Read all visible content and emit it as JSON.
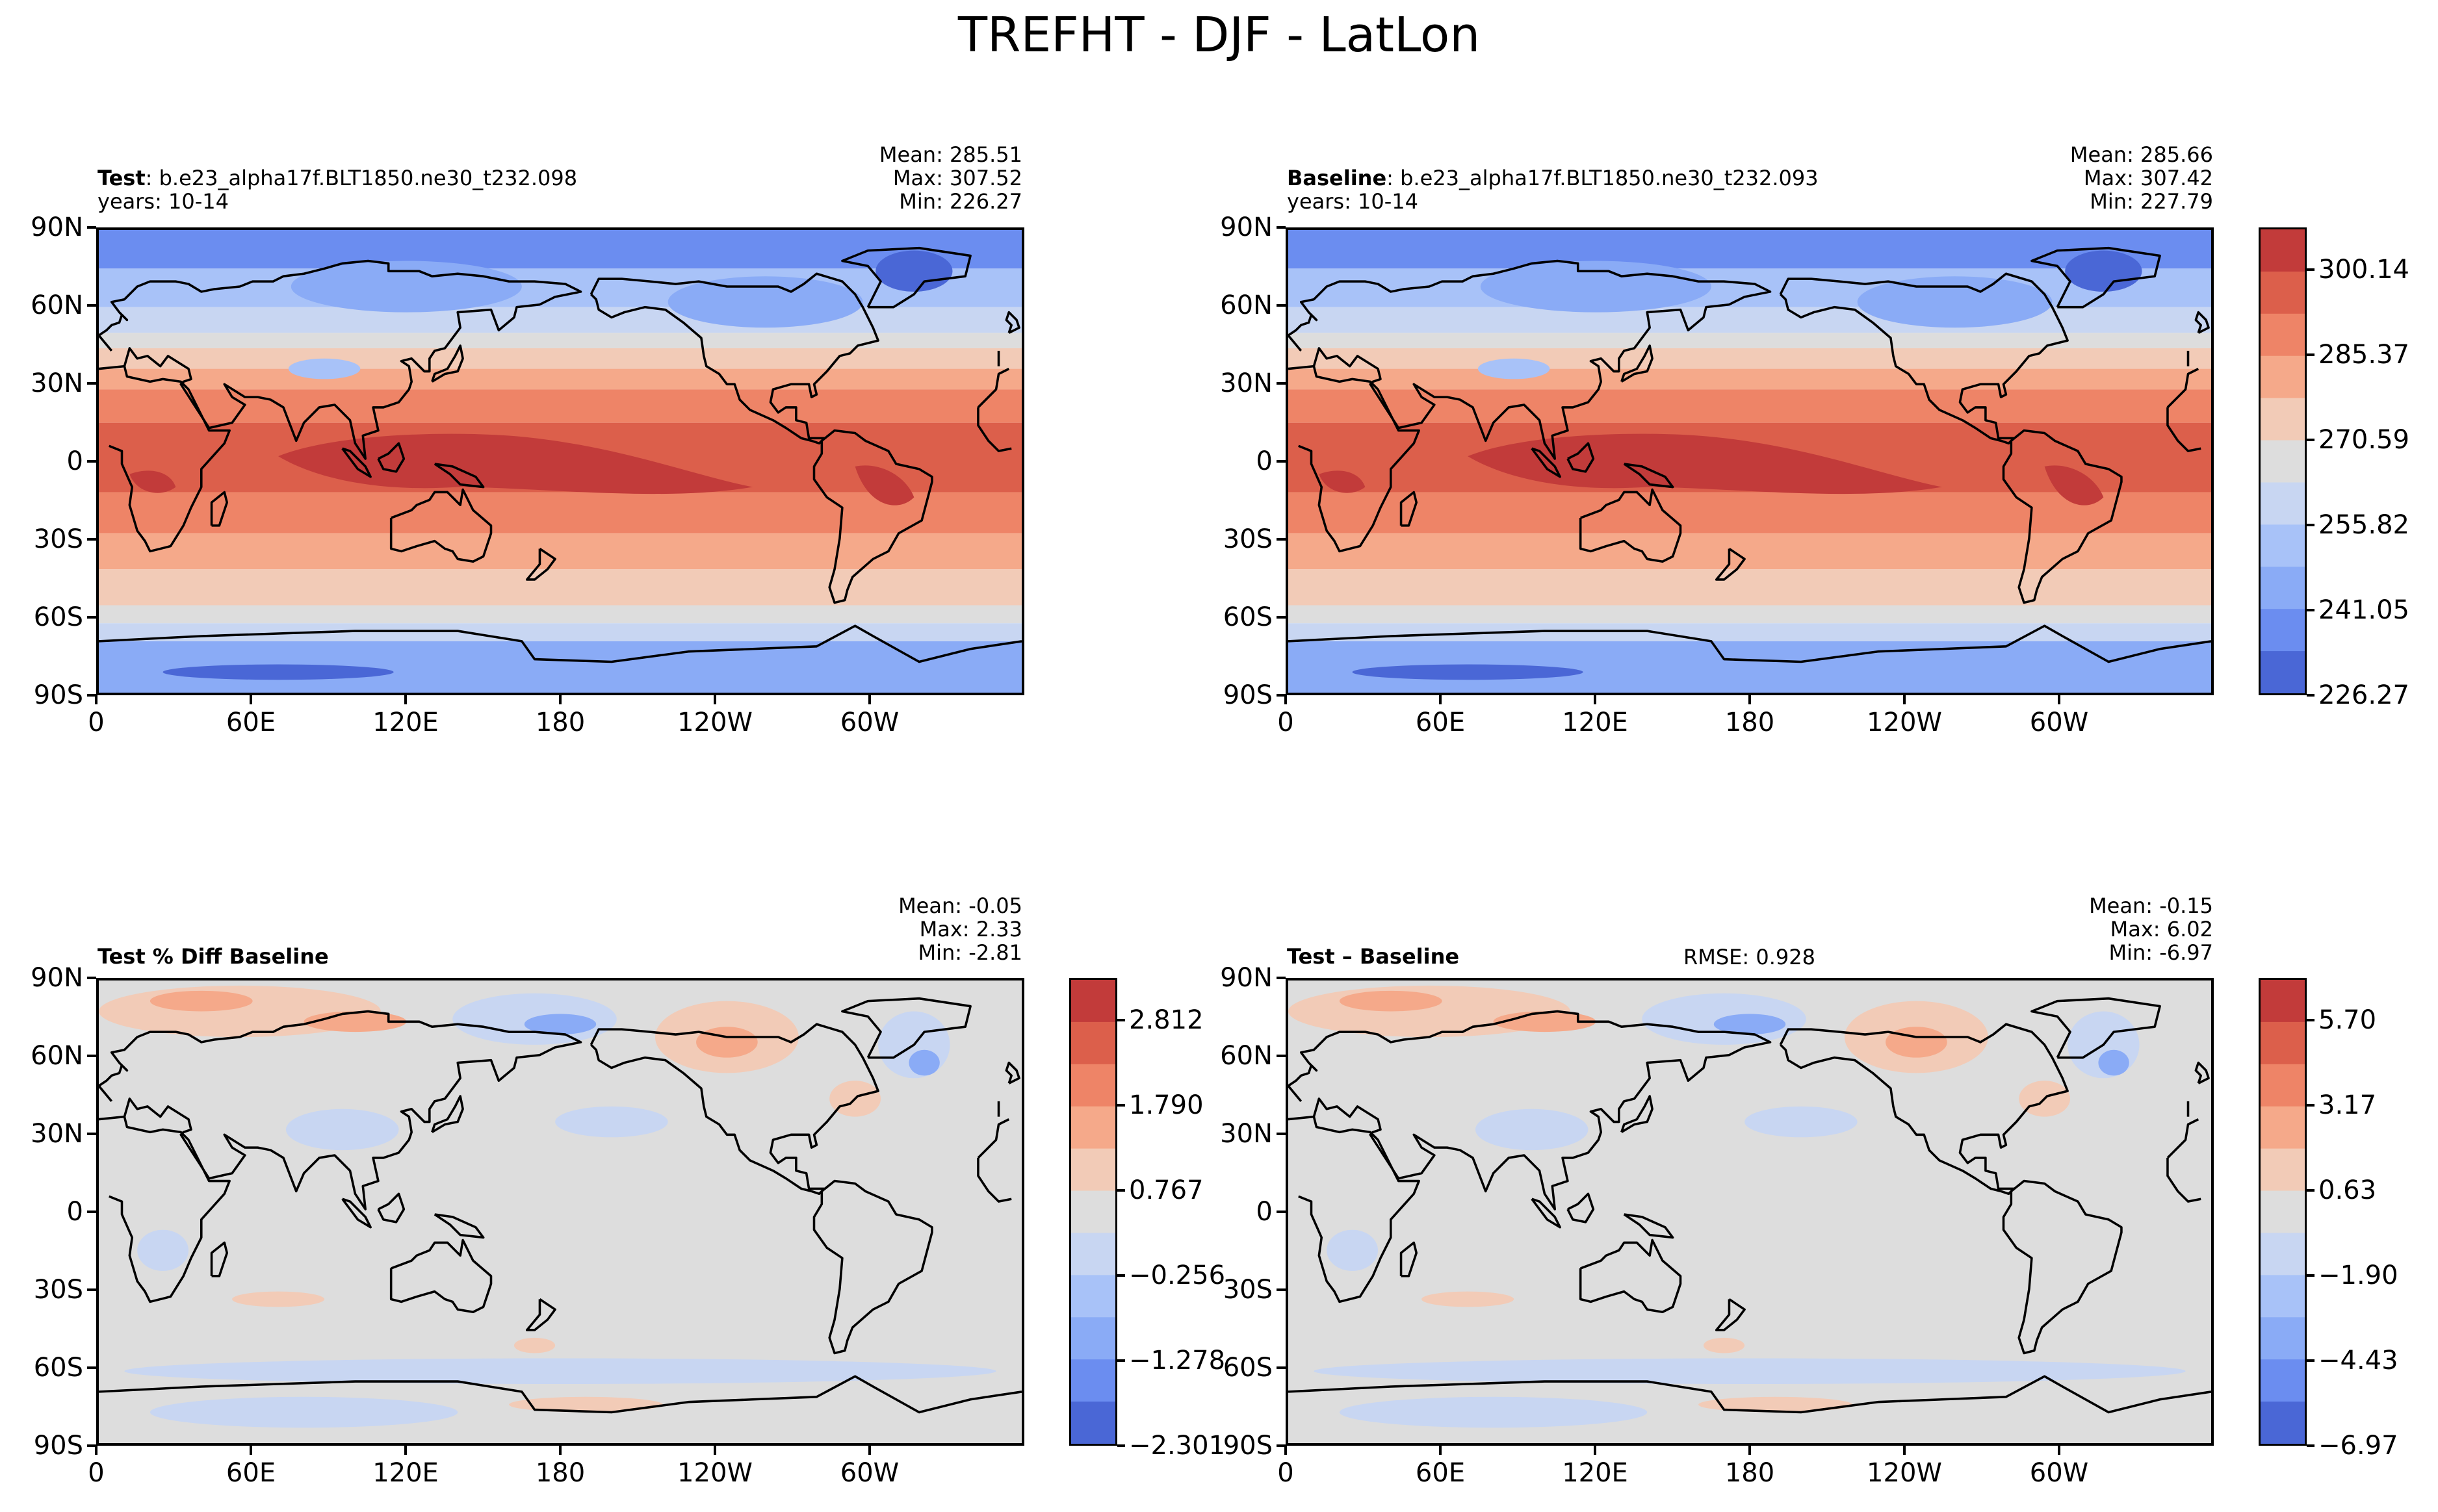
{
  "figure": {
    "title": "TREFHT - DJF - LatLon"
  },
  "chart_data": [
    {
      "type": "heatmap",
      "panel": "test",
      "label_bold": "Test",
      "label_text": ": b.e23_alpha17f.BLT1850.ne30_t232.098",
      "years": "years: 10-14",
      "stats": [
        "Mean: 285.51",
        "Max: 307.52",
        "Min: 226.27"
      ],
      "x_ticks": [
        "0",
        "60E",
        "120E",
        "180",
        "120W",
        "60W"
      ],
      "y_ticks": [
        "90N",
        "60N",
        "30N",
        "0",
        "30S",
        "60S",
        "90S"
      ],
      "xlim": [
        0,
        360
      ],
      "ylim": [
        -90,
        90
      ],
      "field": "absolute"
    },
    {
      "type": "heatmap",
      "panel": "baseline",
      "label_bold": "Baseline",
      "label_text": ": b.e23_alpha17f.BLT1850.ne30_t232.093",
      "years": "years: 10-14",
      "stats": [
        "Mean: 285.66",
        "Max: 307.42",
        "Min: 227.79"
      ],
      "x_ticks": [
        "0",
        "60E",
        "120E",
        "180",
        "120W",
        "60W"
      ],
      "y_ticks": [
        "90N",
        "60N",
        "30N",
        "0",
        "30S",
        "60S",
        "90S"
      ],
      "xlim": [
        0,
        360
      ],
      "ylim": [
        -90,
        90
      ],
      "field": "absolute",
      "colorbar": {
        "ticks": [
          "300.14",
          "285.37",
          "270.59",
          "255.82",
          "241.05",
          "226.27"
        ],
        "colors": [
          "#c23b3a",
          "#dc5f4b",
          "#ee8467",
          "#f5a98a",
          "#f2cbb7",
          "#dddddd",
          "#c8d6f2",
          "#a8c2f8",
          "#8aabf6",
          "#6b8df0",
          "#4a67d6"
        ]
      }
    },
    {
      "type": "heatmap",
      "panel": "pct_diff",
      "label_bold": "Test % Diff Baseline",
      "stats": [
        "Mean: -0.05",
        "Max:  2.33",
        "Min: -2.81"
      ],
      "x_ticks": [
        "0",
        "60E",
        "120E",
        "180",
        "120W",
        "60W"
      ],
      "y_ticks": [
        "90N",
        "60N",
        "30N",
        "0",
        "30S",
        "60S",
        "90S"
      ],
      "xlim": [
        0,
        360
      ],
      "ylim": [
        -90,
        90
      ],
      "field": "difference",
      "colorbar": {
        "ticks": [
          "2.812",
          "1.790",
          "0.767",
          "−0.256",
          "−1.278",
          "−2.301"
        ],
        "colors": [
          "#c23b3a",
          "#dc5f4b",
          "#ee8467",
          "#f5a98a",
          "#f2cbb7",
          "#dddddd",
          "#c8d6f2",
          "#a8c2f8",
          "#8aabf6",
          "#6b8df0",
          "#4a67d6"
        ]
      }
    },
    {
      "type": "heatmap",
      "panel": "diff",
      "label_bold": "Test – Baseline",
      "rmse": "RMSE: 0.928",
      "stats": [
        "Mean: -0.15",
        "Max:  6.02",
        "Min: -6.97"
      ],
      "x_ticks": [
        "0",
        "60E",
        "120E",
        "180",
        "120W",
        "60W"
      ],
      "y_ticks": [
        "90N",
        "60N",
        "30N",
        "0",
        "30S",
        "60S",
        "90S"
      ],
      "xlim": [
        0,
        360
      ],
      "ylim": [
        -90,
        90
      ],
      "field": "difference",
      "colorbar": {
        "ticks": [
          "5.70",
          "3.17",
          "0.63",
          "−1.90",
          "−4.43",
          "−6.97"
        ],
        "colors": [
          "#c23b3a",
          "#dc5f4b",
          "#ee8467",
          "#f5a98a",
          "#f2cbb7",
          "#dddddd",
          "#c8d6f2",
          "#a8c2f8",
          "#8aabf6",
          "#6b8df0",
          "#4a67d6"
        ]
      }
    }
  ]
}
